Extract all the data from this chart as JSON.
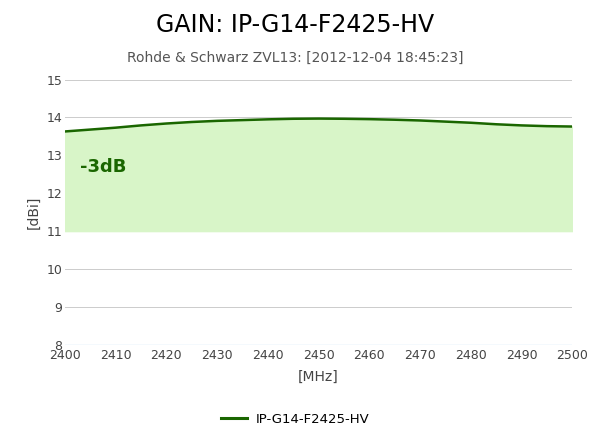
{
  "title": "GAIN: IP-G14-F2425-HV",
  "subtitle": "Rohde & Schwarz ZVL13: [2012-12-04 18:45:23]",
  "xlabel": "[MHz]",
  "ylabel": "[dBi]",
  "xlim": [
    2400,
    2500
  ],
  "ylim": [
    8,
    15
  ],
  "yticks": [
    8,
    9,
    10,
    11,
    12,
    13,
    14,
    15
  ],
  "xticks": [
    2400,
    2410,
    2420,
    2430,
    2440,
    2450,
    2460,
    2470,
    2480,
    2490,
    2500
  ],
  "x_freq": [
    2400,
    2403,
    2406,
    2410,
    2415,
    2420,
    2425,
    2430,
    2435,
    2440,
    2445,
    2450,
    2455,
    2460,
    2465,
    2470,
    2475,
    2480,
    2485,
    2490,
    2495,
    2500
  ],
  "y_gain": [
    13.63,
    13.66,
    13.69,
    13.73,
    13.79,
    13.84,
    13.88,
    13.91,
    13.93,
    13.95,
    13.965,
    13.97,
    13.965,
    13.955,
    13.94,
    13.92,
    13.89,
    13.86,
    13.82,
    13.79,
    13.77,
    13.76
  ],
  "line_color": "#1a6600",
  "fill_color": "#d8f5c8",
  "fill_alpha": 1.0,
  "minus3db_level": 11.0,
  "minus3db_label": "-3dB",
  "minus3db_fontsize": 13,
  "ref_line_y": 8.0,
  "ref_line_color": "#aad4f0",
  "legend_label": "IP-G14-F2425-HV",
  "title_fontsize": 17,
  "subtitle_fontsize": 10,
  "axis_label_fontsize": 10,
  "tick_fontsize": 9,
  "bg_color": "#ffffff",
  "grid_color": "#cccccc",
  "line_width": 1.8
}
